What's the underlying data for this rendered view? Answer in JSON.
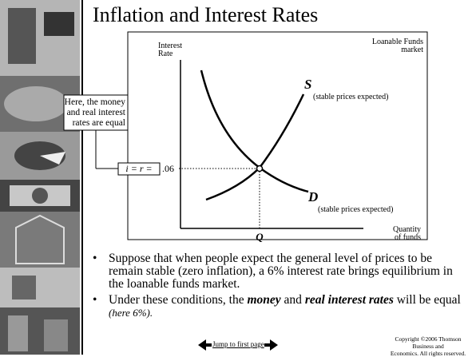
{
  "title": "Inflation and Interest Rates",
  "diagram": {
    "y_axis_label": [
      "Interest",
      "Rate"
    ],
    "market_label": [
      "Loanable Funds",
      "market"
    ],
    "supply_label": "S",
    "supply_note": "(stable prices expected)",
    "demand_label": "D",
    "demand_note": "(stable prices expected)",
    "rate_label": "i = r =",
    "rate_value": ".06",
    "quantity_label": "Q",
    "x_axis_label": [
      "Quantity",
      "of funds"
    ],
    "callout": [
      "Here, the money",
      "and real interest",
      "rates are equal"
    ]
  },
  "bullets": [
    {
      "parts": [
        "Suppose that when people expect the general level of prices to be remain stable (zero inflation), a 6% interest rate brings equilibrium in the loanable funds market."
      ]
    },
    {
      "parts": [
        "Under these conditions, the ",
        "money",
        " and ",
        "real interest rates",
        " will be equal ",
        "(here 6%)."
      ]
    }
  ],
  "footer": {
    "link": "Jump to first page",
    "copyright": [
      "Copyright ©2006  Thomson Business and",
      "Economics. All rights reserved."
    ]
  }
}
